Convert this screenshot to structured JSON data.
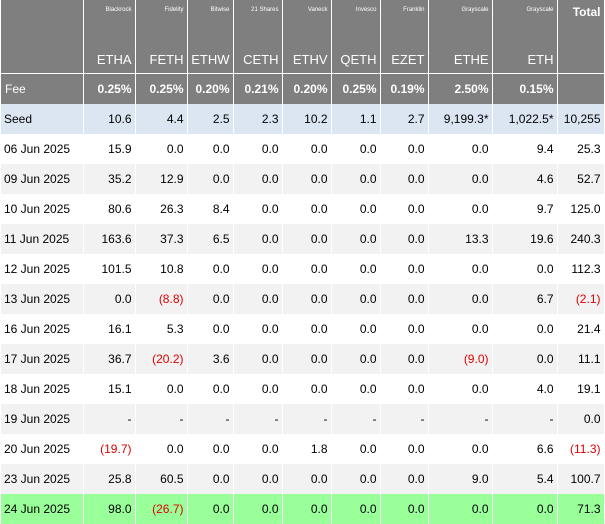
{
  "chart_data": {
    "type": "table",
    "issuers": [
      "Blackrock",
      "Fidelity",
      "Bitwise",
      "21 Shares",
      "Vaneck",
      "Invesco",
      "Franklin",
      "Grayscale",
      "Grayscale"
    ],
    "total_label": "Total",
    "tickers": [
      "ETHA",
      "FETH",
      "ETHW",
      "CETH",
      "ETHV",
      "QETH",
      "EZET",
      "ETHE",
      "ETH"
    ],
    "fee_label": "Fee",
    "fees": [
      "0.25%",
      "0.25%",
      "0.20%",
      "0.21%",
      "0.20%",
      "0.25%",
      "0.19%",
      "2.50%",
      "0.15%"
    ],
    "rows": [
      {
        "label": "Seed",
        "cells": [
          "10.6",
          "4.4",
          "2.5",
          "2.3",
          "10.2",
          "1.1",
          "2.7",
          "9,199.3*",
          "1,022.5*",
          "10,255"
        ]
      },
      {
        "label": "06 Jun 2025",
        "cells": [
          "15.9",
          "0.0",
          "0.0",
          "0.0",
          "0.0",
          "0.0",
          "0.0",
          "0.0",
          "9.4",
          "25.3"
        ]
      },
      {
        "label": "09 Jun 2025",
        "cells": [
          "35.2",
          "12.9",
          "0.0",
          "0.0",
          "0.0",
          "0.0",
          "0.0",
          "0.0",
          "4.6",
          "52.7"
        ]
      },
      {
        "label": "10 Jun 2025",
        "cells": [
          "80.6",
          "26.3",
          "8.4",
          "0.0",
          "0.0",
          "0.0",
          "0.0",
          "0.0",
          "9.7",
          "125.0"
        ]
      },
      {
        "label": "11 Jun 2025",
        "cells": [
          "163.6",
          "37.3",
          "6.5",
          "0.0",
          "0.0",
          "0.0",
          "0.0",
          "13.3",
          "19.6",
          "240.3"
        ]
      },
      {
        "label": "12 Jun 2025",
        "cells": [
          "101.5",
          "10.8",
          "0.0",
          "0.0",
          "0.0",
          "0.0",
          "0.0",
          "0.0",
          "0.0",
          "112.3"
        ]
      },
      {
        "label": "13 Jun 2025",
        "cells": [
          "0.0",
          "(8.8)",
          "0.0",
          "0.0",
          "0.0",
          "0.0",
          "0.0",
          "0.0",
          "6.7",
          "(2.1)"
        ]
      },
      {
        "label": "16 Jun 2025",
        "cells": [
          "16.1",
          "5.3",
          "0.0",
          "0.0",
          "0.0",
          "0.0",
          "0.0",
          "0.0",
          "0.0",
          "21.4"
        ]
      },
      {
        "label": "17 Jun 2025",
        "cells": [
          "36.7",
          "(20.2)",
          "3.6",
          "0.0",
          "0.0",
          "0.0",
          "0.0",
          "(9.0)",
          "0.0",
          "11.1"
        ]
      },
      {
        "label": "18 Jun 2025",
        "cells": [
          "15.1",
          "0.0",
          "0.0",
          "0.0",
          "0.0",
          "0.0",
          "0.0",
          "0.0",
          "4.0",
          "19.1"
        ]
      },
      {
        "label": "19 Jun 2025",
        "cells": [
          "-",
          "-",
          "-",
          "-",
          "-",
          "-",
          "-",
          "-",
          "-",
          "0.0"
        ]
      },
      {
        "label": "20 Jun 2025",
        "cells": [
          "(19.7)",
          "0.0",
          "0.0",
          "0.0",
          "1.8",
          "0.0",
          "0.0",
          "0.0",
          "6.6",
          "(11.3)"
        ]
      },
      {
        "label": "23 Jun 2025",
        "cells": [
          "25.8",
          "60.5",
          "0.0",
          "0.0",
          "0.0",
          "0.0",
          "0.0",
          "9.0",
          "5.4",
          "100.7"
        ]
      },
      {
        "label": "24 Jun 2025",
        "cells": [
          "98.0",
          "(26.7)",
          "0.0",
          "0.0",
          "0.0",
          "0.0",
          "0.0",
          "0.0",
          "0.0",
          "71.3"
        ]
      }
    ],
    "styling": {
      "header_bg": "#7f7f7f",
      "header_text": "#ffffff",
      "seed_row_bg": "#dce6f2",
      "alt_row_bg": "#f2f2f2",
      "latest_row_bg": "#99ff99",
      "negative_text": "#e00000"
    }
  }
}
